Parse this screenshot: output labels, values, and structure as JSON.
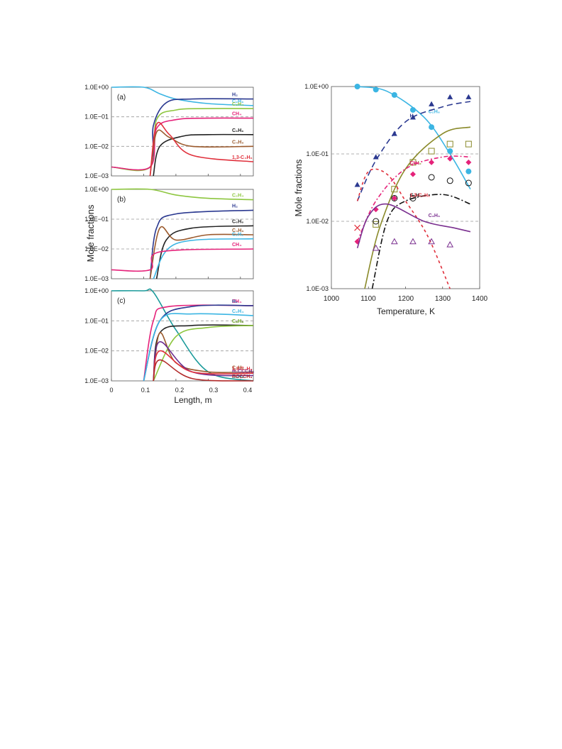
{
  "colors": {
    "c2h6": "#3bb5e3",
    "h2": "#2b3990",
    "c2h4": "#8dc63f",
    "ch4": "#e5227a",
    "c6h6": "#222222",
    "c4h6": "#9b5a2d",
    "c13": "#e0303c",
    "c2h2": "#8a8a2a",
    "c3h6": "#7a2f8f",
    "h2ccch2": "#6a2b8f",
    "hccch3": "#b22a2a"
  },
  "left": {
    "ylabel": "Mole fractions",
    "xlabel": "Length, m",
    "xticks": [
      "0",
      "0.1",
      "0.2",
      "0.3",
      "0.4"
    ],
    "yticks": [
      "1.0E+00",
      "1.0E−01",
      "1.0E−02",
      "1.0E−03"
    ]
  },
  "right": {
    "ylabel": "Mole fractions",
    "xlabel": "Temperature, K",
    "xticks": [
      "1000",
      "1100",
      "1200",
      "1300",
      "1400"
    ],
    "yticks": [
      "1.0E+00",
      "1.0E-01",
      "1.0E-02",
      "1.0E-03"
    ]
  },
  "chart_data": [
    {
      "type": "line",
      "panel": "(a)",
      "xlim": [
        0,
        0.44
      ],
      "ylim": [
        0.001,
        1
      ],
      "yscale": "log",
      "series": [
        {
          "name": "C2H6",
          "color": "#3bb5e3",
          "points": [
            [
              0,
              1
            ],
            [
              0.1,
              1
            ],
            [
              0.15,
              0.6
            ],
            [
              0.2,
              0.4
            ],
            [
              0.3,
              0.28
            ],
            [
              0.44,
              0.24
            ]
          ]
        },
        {
          "name": "H2",
          "color": "#2b3990",
          "points": [
            [
              0,
              0.002
            ],
            [
              0.12,
              0.002
            ],
            [
              0.13,
              0.05
            ],
            [
              0.17,
              0.3
            ],
            [
              0.25,
              0.4
            ],
            [
              0.44,
              0.4
            ]
          ]
        },
        {
          "name": "C2H4",
          "color": "#8dc63f",
          "points": [
            [
              0,
              0.002
            ],
            [
              0.12,
              0.002
            ],
            [
              0.14,
              0.08
            ],
            [
              0.2,
              0.17
            ],
            [
              0.3,
              0.19
            ],
            [
              0.44,
              0.19
            ]
          ]
        },
        {
          "name": "CH4",
          "color": "#e5227a",
          "points": [
            [
              0,
              0.002
            ],
            [
              0.12,
              0.002
            ],
            [
              0.14,
              0.04
            ],
            [
              0.2,
              0.08
            ],
            [
              0.3,
              0.09
            ],
            [
              0.44,
              0.09
            ]
          ]
        },
        {
          "name": "C6H6",
          "color": "#222222",
          "points": [
            [
              0.13,
              0.001
            ],
            [
              0.15,
              0.01
            ],
            [
              0.22,
              0.022
            ],
            [
              0.3,
              0.025
            ],
            [
              0.44,
              0.025
            ]
          ]
        },
        {
          "name": "C4H6",
          "color": "#9b5a2d",
          "points": [
            [
              0.12,
              0.001
            ],
            [
              0.14,
              0.03
            ],
            [
              0.18,
              0.02
            ],
            [
              0.25,
              0.01
            ],
            [
              0.44,
              0.01
            ]
          ]
        },
        {
          "name": "1,3-C4H6",
          "color": "#e0303c",
          "points": [
            [
              0.12,
              0.001
            ],
            [
              0.14,
              0.055
            ],
            [
              0.18,
              0.025
            ],
            [
              0.25,
              0.005
            ],
            [
              0.44,
              0.003
            ]
          ]
        }
      ]
    },
    {
      "type": "line",
      "panel": "(b)",
      "xlim": [
        0,
        0.44
      ],
      "ylim": [
        0.001,
        1
      ],
      "yscale": "log",
      "series": [
        {
          "name": "C2H4",
          "color": "#8dc63f",
          "points": [
            [
              0,
              1
            ],
            [
              0.12,
              1
            ],
            [
              0.2,
              0.65
            ],
            [
              0.3,
              0.5
            ],
            [
              0.44,
              0.45
            ]
          ]
        },
        {
          "name": "H2",
          "color": "#2b3990",
          "points": [
            [
              0.12,
              0.001
            ],
            [
              0.14,
              0.05
            ],
            [
              0.2,
              0.15
            ],
            [
              0.44,
              0.2
            ]
          ]
        },
        {
          "name": "C6H6",
          "color": "#222222",
          "points": [
            [
              0.14,
              0.001
            ],
            [
              0.17,
              0.02
            ],
            [
              0.25,
              0.05
            ],
            [
              0.44,
              0.06
            ]
          ]
        },
        {
          "name": "C4H6",
          "color": "#9b5a2d",
          "points": [
            [
              0.12,
              0.001
            ],
            [
              0.15,
              0.05
            ],
            [
              0.2,
              0.02
            ],
            [
              0.3,
              0.03
            ],
            [
              0.44,
              0.03
            ]
          ]
        },
        {
          "name": "C2H2",
          "color": "#3bb5e3",
          "points": [
            [
              0.13,
              0.001
            ],
            [
              0.2,
              0.015
            ],
            [
              0.44,
              0.022
            ]
          ]
        },
        {
          "name": "CH4",
          "color": "#e5227a",
          "points": [
            [
              0,
              0.002
            ],
            [
              0.12,
              0.002
            ],
            [
              0.15,
              0.008
            ],
            [
              0.44,
              0.01
            ]
          ]
        }
      ]
    },
    {
      "type": "line",
      "panel": "(c)",
      "xlim": [
        0,
        0.44
      ],
      "ylim": [
        0.001,
        1
      ],
      "yscale": "log",
      "series": [
        {
          "name": "C3H8",
          "color": "#1a9a9a",
          "points": [
            [
              0,
              1
            ],
            [
              0.1,
              1
            ],
            [
              0.13,
              0.9
            ],
            [
              0.2,
              0.05
            ],
            [
              0.3,
              0.002
            ],
            [
              0.44,
              0.001
            ]
          ]
        },
        {
          "name": "CH4",
          "color": "#e5227a",
          "points": [
            [
              0.1,
              0.001
            ],
            [
              0.13,
              0.1
            ],
            [
              0.18,
              0.3
            ],
            [
              0.44,
              0.32
            ]
          ]
        },
        {
          "name": "H2",
          "color": "#2b3990",
          "points": [
            [
              0.1,
              0.001
            ],
            [
              0.15,
              0.1
            ],
            [
              0.25,
              0.3
            ],
            [
              0.44,
              0.32
            ]
          ]
        },
        {
          "name": "C2H4",
          "color": "#3bb5e3",
          "points": [
            [
              0.1,
              0.001
            ],
            [
              0.15,
              0.1
            ],
            [
              0.25,
              0.17
            ],
            [
              0.44,
              0.15
            ]
          ]
        },
        {
          "name": "C6H6",
          "color": "#222222",
          "points": [
            [
              0.13,
              0.001
            ],
            [
              0.15,
              0.04
            ],
            [
              0.25,
              0.07
            ],
            [
              0.44,
              0.07
            ]
          ]
        },
        {
          "name": "C2H2",
          "color": "#8dc63f",
          "points": [
            [
              0.13,
              0.001
            ],
            [
              0.2,
              0.03
            ],
            [
              0.3,
              0.06
            ],
            [
              0.44,
              0.07
            ]
          ]
        },
        {
          "name": "C4H6",
          "color": "#9b5a2d",
          "points": [
            [
              0.13,
              0.001
            ],
            [
              0.15,
              0.04
            ],
            [
              0.2,
              0.004
            ],
            [
              0.3,
              0.002
            ],
            [
              0.44,
              0.002
            ]
          ]
        },
        {
          "name": "H2CCCH2",
          "color": "#6a2b8f",
          "points": [
            [
              0.13,
              0.001
            ],
            [
              0.15,
              0.02
            ],
            [
              0.25,
              0.002
            ],
            [
              0.44,
              0.0015
            ]
          ]
        },
        {
          "name": "1,3-C4H6",
          "color": "#e0303c",
          "points": [
            [
              0.13,
              0.001
            ],
            [
              0.15,
              0.01
            ],
            [
              0.25,
              0.002
            ],
            [
              0.44,
              0.0018
            ]
          ]
        },
        {
          "name": "HCCCH3",
          "color": "#b22a2a",
          "points": [
            [
              0.13,
              0.001
            ],
            [
              0.15,
              0.005
            ],
            [
              0.25,
              0.0012
            ],
            [
              0.44,
              0.001
            ]
          ]
        }
      ]
    },
    {
      "type": "scatter+line",
      "xlim": [
        1000,
        1400
      ],
      "ylim": [
        0.001,
        1
      ],
      "yscale": "log",
      "series": [
        {
          "name": "C2H6",
          "color": "#3bb5e3",
          "curve": [
            [
              1070,
              1
            ],
            [
              1150,
              0.85
            ],
            [
              1250,
              0.35
            ],
            [
              1320,
              0.1
            ],
            [
              1375,
              0.03
            ]
          ],
          "points": [
            [
              1070,
              1
            ],
            [
              1120,
              0.9
            ],
            [
              1170,
              0.75
            ],
            [
              1220,
              0.45
            ],
            [
              1270,
              0.25
            ],
            [
              1320,
              0.11
            ],
            [
              1370,
              0.055
            ]
          ],
          "marker": "circle"
        },
        {
          "name": "H2",
          "color": "#2b3990",
          "dash": "8,5",
          "curve": [
            [
              1070,
              0.02
            ],
            [
              1120,
              0.08
            ],
            [
              1200,
              0.3
            ],
            [
              1300,
              0.5
            ],
            [
              1375,
              0.6
            ]
          ],
          "points": [
            [
              1070,
              0.035
            ],
            [
              1120,
              0.09
            ],
            [
              1170,
              0.2
            ],
            [
              1220,
              0.35
            ],
            [
              1270,
              0.55
            ],
            [
              1320,
              0.7
            ],
            [
              1370,
              0.7
            ]
          ],
          "marker": "triangle"
        },
        {
          "name": "C2H2",
          "color": "#8a8a2a",
          "curve": [
            [
              1090,
              0.001
            ],
            [
              1130,
              0.008
            ],
            [
              1200,
              0.06
            ],
            [
              1300,
              0.2
            ],
            [
              1375,
              0.25
            ]
          ],
          "points": [
            [
              1120,
              0.009
            ],
            [
              1170,
              0.03
            ],
            [
              1220,
              0.075
            ],
            [
              1270,
              0.11
            ],
            [
              1320,
              0.14
            ],
            [
              1370,
              0.14
            ]
          ],
          "marker": "square"
        },
        {
          "name": "CH4",
          "color": "#e5227a",
          "dash": "6,3,2,3",
          "curve": [
            [
              1070,
              0.005
            ],
            [
              1120,
              0.02
            ],
            [
              1200,
              0.06
            ],
            [
              1300,
              0.09
            ],
            [
              1375,
              0.09
            ]
          ],
          "points": [
            [
              1070,
              0.005
            ],
            [
              1120,
              0.015
            ],
            [
              1170,
              0.022
            ],
            [
              1220,
              0.05
            ],
            [
              1270,
              0.075
            ],
            [
              1320,
              0.085
            ],
            [
              1370,
              0.075
            ]
          ],
          "marker": "diamond"
        },
        {
          "name": "C6H6",
          "color": "#111111",
          "dash": "8,3,2,3",
          "curve": [
            [
              1110,
              0.001
            ],
            [
              1150,
              0.01
            ],
            [
              1200,
              0.02
            ],
            [
              1300,
              0.025
            ],
            [
              1375,
              0.018
            ]
          ],
          "points": [
            [
              1120,
              0.01
            ],
            [
              1170,
              0.022
            ],
            [
              1220,
              0.022
            ],
            [
              1270,
              0.045
            ],
            [
              1320,
              0.04
            ],
            [
              1370,
              0.037
            ]
          ],
          "marker": "circle-open"
        },
        {
          "name": "1,3-C4H6",
          "color": "#e0303c",
          "dash": "4,4",
          "curve": [
            [
              1070,
              0.02
            ],
            [
              1100,
              0.055
            ],
            [
              1150,
              0.05
            ],
            [
              1200,
              0.02
            ],
            [
              1260,
              0.006
            ],
            [
              1320,
              0.001
            ]
          ],
          "points": [
            [
              1070,
              0.008
            ]
          ],
          "marker": "x"
        },
        {
          "name": "C3H6",
          "color": "#7a2f8f",
          "curve": [
            [
              1070,
              0.004
            ],
            [
              1100,
              0.012
            ],
            [
              1150,
              0.018
            ],
            [
              1250,
              0.01
            ],
            [
              1330,
              0.008
            ],
            [
              1375,
              0.007
            ]
          ],
          "points": [
            [
              1120,
              0.004
            ],
            [
              1170,
              0.005
            ],
            [
              1220,
              0.005
            ],
            [
              1270,
              0.005
            ],
            [
              1320,
              0.0045
            ]
          ],
          "marker": "triangle-open"
        }
      ]
    }
  ]
}
